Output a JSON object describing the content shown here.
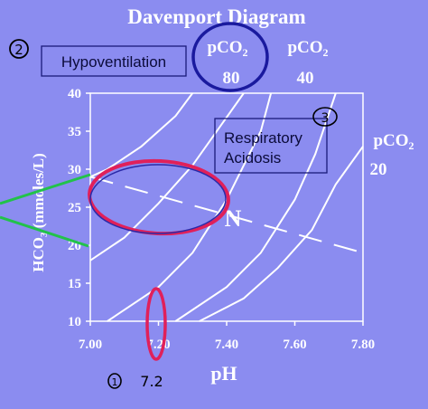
{
  "title": "Davenport Diagram",
  "annotations": {
    "step2_number": "2",
    "step2_label": "Hypoventilation",
    "step3_number": "3",
    "respiratory_label_line1": "Respiratory",
    "respiratory_label_line2": "Acidosis",
    "step1_number": "1",
    "step1_value": "7.2"
  },
  "isobar_labels": {
    "pco2_80_title": "pCO",
    "pco2_80_sub": "2",
    "pco2_80_value": "80",
    "pco2_40_title": "pCO",
    "pco2_40_sub": "2",
    "pco2_40_value": "40",
    "pco2_20_title": "pCO",
    "pco2_20_sub": "2",
    "pco2_20_value": "20"
  },
  "axes": {
    "x_label": "pH",
    "y_label_main": "HCO",
    "y_label_sub": "3",
    "y_label_unit": " (mmoles/L)",
    "x_ticks": [
      "7.00",
      "7.20",
      "7.40",
      "7.60",
      "7.80"
    ],
    "y_ticks": [
      "10",
      "15",
      "20",
      "25",
      "30",
      "35",
      "40"
    ]
  },
  "normal_point_label": "N",
  "colors": {
    "background": "#8b8cf0",
    "text": "#ffffff",
    "circle_pen": "#1a1a9e",
    "red_pen": "#e0205a",
    "green_pen": "#22c24a"
  },
  "chart_data": {
    "type": "line",
    "xlim": [
      7.0,
      7.8
    ],
    "ylim": [
      10,
      40
    ],
    "xlabel": "pH",
    "ylabel": "HCO3 (mmoles/L)",
    "isobars": [
      {
        "pco2": 80,
        "points": [
          [
            7.05,
            10
          ],
          [
            7.2,
            14.5
          ],
          [
            7.3,
            19
          ],
          [
            7.4,
            26
          ],
          [
            7.5,
            35
          ],
          [
            7.53,
            40
          ]
        ]
      },
      {
        "pco2": 40,
        "points": [
          [
            7.0,
            18
          ],
          [
            7.1,
            21
          ],
          [
            7.2,
            25.5
          ],
          [
            7.3,
            30.5
          ],
          [
            7.45,
            40
          ]
        ]
      },
      {
        "pco2": 20,
        "points": [
          [
            7.32,
            10
          ],
          [
            7.45,
            13
          ],
          [
            7.55,
            17
          ],
          [
            7.65,
            22
          ],
          [
            7.72,
            28
          ],
          [
            7.8,
            33
          ]
        ]
      },
      {
        "pco2": 0,
        "points": [
          [
            7.0,
            29
          ],
          [
            7.05,
            30
          ],
          [
            7.15,
            33
          ],
          [
            7.25,
            37
          ],
          [
            7.3,
            40
          ]
        ]
      },
      {
        "pco2": 0,
        "points": [
          [
            7.25,
            10
          ],
          [
            7.4,
            14.5
          ],
          [
            7.5,
            19
          ],
          [
            7.6,
            26
          ],
          [
            7.66,
            32
          ],
          [
            7.72,
            40
          ]
        ]
      }
    ],
    "buffer_line": {
      "points": [
        [
          7.0,
          29
        ],
        [
          7.4,
          24
        ],
        [
          7.8,
          19
        ]
      ],
      "dashed": true
    },
    "normal_point": {
      "ph": 7.4,
      "hco3": 24
    }
  }
}
